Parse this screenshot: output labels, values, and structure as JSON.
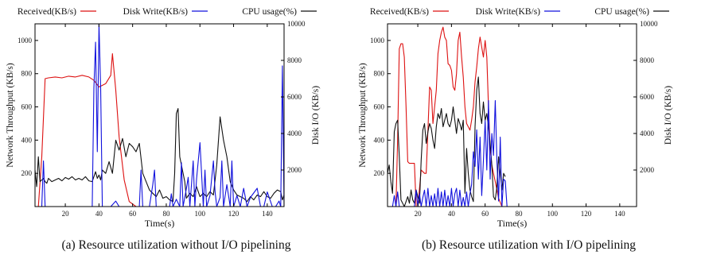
{
  "captions": [
    "(a) Resource utilization without I/O pipelining",
    "(b) Resource utilization with I/O pipelining"
  ],
  "colors": {
    "received": "#dd1111",
    "disk_write": "#1111dd",
    "cpu": "#111111"
  },
  "chart_data": [
    {
      "type": "line",
      "xlabel": "Time(s)",
      "ylabel": "Network Throughput (KB/s)",
      "y2label": "Disk I/O (KB/s)",
      "xlim": [
        2,
        150
      ],
      "ylim": [
        0,
        1100
      ],
      "y2lim": [
        0,
        10000
      ],
      "xticks": [
        20,
        40,
        60,
        80,
        100,
        120,
        140
      ],
      "yticks": [
        200,
        400,
        600,
        800,
        1000
      ],
      "y2ticks": [
        2000,
        4000,
        6000,
        8000,
        10000
      ],
      "x_tick_labels": [
        "20",
        "40",
        "60",
        "80",
        "100",
        "120",
        "140"
      ],
      "y_tick_labels": [
        "200",
        "400",
        "600",
        "800",
        "1000"
      ],
      "y2_tick_labels": [
        "2000",
        "4000",
        "6000",
        "8000",
        "10000"
      ],
      "legend": [
        "Received(KB/s)",
        "Disk Write(KB/s)",
        "CPU usage(%)"
      ],
      "series": [
        {
          "name": "Received(KB/s)",
          "axis": "left",
          "x": [
            2,
            4,
            6,
            8,
            10,
            14,
            18,
            22,
            26,
            30,
            34,
            37,
            40,
            44,
            47,
            48,
            50,
            52,
            55,
            58,
            62,
            70,
            80,
            100,
            120,
            150
          ],
          "y": [
            0,
            0,
            300,
            770,
            775,
            780,
            775,
            785,
            780,
            790,
            780,
            760,
            720,
            740,
            790,
            920,
            700,
            420,
            160,
            30,
            0,
            0,
            0,
            0,
            0,
            0
          ]
        },
        {
          "name": "Disk Write(KB/s)",
          "axis": "right",
          "x": [
            2,
            6,
            7,
            8,
            9,
            12,
            20,
            30,
            36,
            37,
            38,
            39,
            40,
            41,
            42,
            43,
            45,
            47,
            50,
            52,
            60,
            64,
            65,
            66,
            70,
            72,
            73,
            74,
            80,
            82,
            83,
            84,
            86,
            88,
            89,
            90,
            92,
            93,
            94,
            96,
            97,
            98,
            100,
            102,
            103,
            104,
            106,
            108,
            109,
            110,
            112,
            113,
            114,
            116,
            118,
            119,
            120,
            122,
            124,
            126,
            128,
            130,
            134,
            136,
            138,
            140,
            143,
            145,
            147,
            148,
            149,
            150
          ],
          "y": [
            0,
            0,
            2500,
            0,
            0,
            0,
            0,
            0,
            0,
            6500,
            9000,
            3000,
            10000,
            6500,
            0,
            0,
            0,
            0,
            300,
            0,
            0,
            0,
            2000,
            0,
            0,
            1200,
            2000,
            0,
            0,
            0,
            700,
            0,
            400,
            0,
            2400,
            0,
            1000,
            1600,
            0,
            2500,
            0,
            1500,
            3500,
            0,
            2000,
            0,
            600,
            2500,
            800,
            0,
            500,
            2500,
            0,
            1200,
            0,
            2500,
            0,
            600,
            0,
            1000,
            0,
            500,
            1000,
            0,
            0,
            800,
            0,
            0,
            300,
            0,
            7700,
            0
          ]
        },
        {
          "name": "CPU usage(%)",
          "axis": "left",
          "x": [
            2,
            3,
            4,
            5,
            6,
            7,
            8,
            9,
            10,
            12,
            14,
            16,
            18,
            20,
            22,
            24,
            26,
            28,
            30,
            32,
            34,
            36,
            38,
            39,
            40,
            41,
            42,
            44,
            46,
            48,
            50,
            52,
            54,
            56,
            58,
            60,
            62,
            64,
            66,
            68,
            70,
            72,
            74,
            76,
            78,
            80,
            82,
            84,
            85,
            86,
            87,
            88,
            89,
            90,
            91,
            92,
            94,
            96,
            98,
            100,
            102,
            104,
            106,
            108,
            110,
            112,
            114,
            116,
            118,
            120,
            122,
            124,
            126,
            128,
            130,
            132,
            134,
            136,
            138,
            140,
            142,
            144,
            146,
            148,
            149,
            150
          ],
          "y": [
            220,
            120,
            300,
            150,
            160,
            170,
            150,
            140,
            170,
            150,
            160,
            170,
            155,
            175,
            165,
            180,
            160,
            170,
            160,
            180,
            155,
            150,
            210,
            170,
            190,
            160,
            220,
            200,
            270,
            200,
            400,
            340,
            410,
            300,
            380,
            360,
            330,
            380,
            200,
            150,
            100,
            80,
            60,
            100,
            50,
            60,
            40,
            30,
            200,
            560,
            590,
            300,
            250,
            200,
            150,
            50,
            80,
            60,
            120,
            60,
            80,
            60,
            90,
            70,
            250,
            540,
            400,
            300,
            150,
            100,
            70,
            60,
            50,
            30,
            60,
            40,
            70,
            60,
            90,
            60,
            50,
            80,
            100,
            90,
            40,
            70
          ]
        }
      ]
    },
    {
      "type": "line",
      "xlabel": "Time(s)",
      "ylabel": "Network Throughput (KB/s)",
      "y2label": "Disk I/O (KB/s)",
      "xlim": [
        2,
        150
      ],
      "ylim": [
        0,
        1100
      ],
      "y2lim": [
        0,
        10000
      ],
      "xticks": [
        20,
        40,
        60,
        80,
        100,
        120,
        140
      ],
      "yticks": [
        200,
        400,
        600,
        800,
        1000
      ],
      "y2ticks": [
        2000,
        4000,
        6000,
        8000,
        10000
      ],
      "x_tick_labels": [
        "20",
        "40",
        "60",
        "80",
        "100",
        "120",
        "140"
      ],
      "y_tick_labels": [
        "200",
        "400",
        "600",
        "800",
        "1000"
      ],
      "y2_tick_labels": [
        "2000",
        "4000",
        "6000",
        "8000",
        "10000"
      ],
      "legend": [
        "Received(KB/s)",
        "Disk Write(KB/s)",
        "CPU usage(%)"
      ],
      "series": [
        {
          "name": "Received(KB/s)",
          "axis": "left",
          "x": [
            2,
            5,
            7,
            8,
            9,
            10,
            11,
            12,
            13,
            14,
            15,
            16,
            18,
            19,
            20,
            22,
            24,
            25,
            26,
            27,
            28,
            29,
            30,
            31,
            32,
            33,
            34,
            35,
            36,
            37,
            38,
            39,
            40,
            41,
            42,
            43,
            44,
            45,
            46,
            47,
            48,
            49,
            50,
            51,
            52,
            53,
            54,
            55,
            56,
            57,
            58,
            59,
            60,
            61,
            62,
            63,
            64,
            65,
            66,
            68,
            70,
            72,
            80,
            100,
            150
          ],
          "y": [
            0,
            0,
            0,
            400,
            950,
            980,
            980,
            900,
            600,
            270,
            260,
            260,
            260,
            0,
            0,
            220,
            200,
            200,
            460,
            720,
            700,
            500,
            600,
            700,
            920,
            1000,
            1050,
            1080,
            1020,
            1000,
            860,
            850,
            820,
            720,
            700,
            800,
            1000,
            1050,
            900,
            780,
            600,
            500,
            480,
            460,
            520,
            600,
            750,
            840,
            950,
            1020,
            960,
            900,
            1000,
            900,
            600,
            350,
            250,
            200,
            150,
            50,
            0,
            0,
            0,
            0,
            0
          ]
        },
        {
          "name": "Disk Write(KB/s)",
          "axis": "right",
          "x": [
            2,
            5,
            6,
            7,
            8,
            9,
            18,
            19,
            20,
            21,
            22,
            23,
            24,
            25,
            26,
            27,
            28,
            29,
            30,
            31,
            32,
            33,
            34,
            35,
            36,
            37,
            38,
            39,
            40,
            41,
            42,
            43,
            44,
            45,
            46,
            47,
            48,
            49,
            50,
            51,
            52,
            53,
            54,
            55,
            56,
            57,
            58,
            59,
            60,
            61,
            62,
            63,
            64,
            65,
            66,
            67,
            68,
            69,
            70,
            71,
            72,
            73,
            80,
            100,
            150
          ],
          "y": [
            0,
            0,
            600,
            0,
            800,
            0,
            0,
            900,
            0,
            700,
            0,
            500,
            900,
            0,
            1000,
            0,
            600,
            0,
            700,
            0,
            1000,
            0,
            800,
            0,
            900,
            0,
            600,
            0,
            1000,
            0,
            700,
            1000,
            0,
            900,
            0,
            500,
            0,
            800,
            0,
            700,
            1200,
            3000,
            2200,
            4200,
            1500,
            3800,
            600,
            2500,
            4700,
            2000,
            5800,
            1500,
            4000,
            2800,
            5800,
            2500,
            300,
            3800,
            0,
            1500,
            1400,
            0,
            0,
            0,
            0
          ]
        },
        {
          "name": "CPU usage(%)",
          "axis": "left",
          "x": [
            2,
            3,
            4,
            5,
            6,
            7,
            8,
            9,
            10,
            11,
            12,
            13,
            14,
            15,
            16,
            17,
            18,
            19,
            20,
            21,
            22,
            23,
            24,
            25,
            26,
            27,
            28,
            29,
            30,
            31,
            32,
            33,
            34,
            35,
            36,
            37,
            38,
            39,
            40,
            41,
            42,
            43,
            44,
            45,
            46,
            47,
            48,
            49,
            50,
            51,
            52,
            53,
            54,
            55,
            56,
            57,
            58,
            59,
            60,
            61,
            62,
            63,
            64,
            65,
            66,
            67,
            68,
            69,
            70,
            71,
            72
          ],
          "y": [
            200,
            250,
            150,
            80,
            450,
            500,
            520,
            300,
            40,
            20,
            0,
            30,
            60,
            20,
            100,
            40,
            20,
            100,
            60,
            20,
            280,
            460,
            500,
            380,
            450,
            500,
            470,
            400,
            350,
            480,
            560,
            530,
            590,
            480,
            520,
            560,
            500,
            480,
            520,
            600,
            520,
            440,
            530,
            500,
            460,
            520,
            80,
            350,
            200,
            100,
            60,
            30,
            480,
            700,
            780,
            560,
            500,
            630,
            520,
            560,
            480,
            380,
            250,
            60,
            40,
            120,
            300,
            200,
            100,
            200,
            180
          ]
        }
      ]
    }
  ]
}
